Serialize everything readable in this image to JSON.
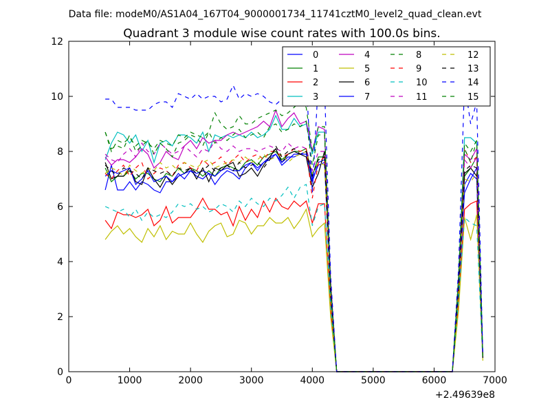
{
  "suptitle": "Data file: modeM0/AS1A04_167T04_9000001734_11741cztM0_level2_quad_clean.evt",
  "chart_data": {
    "type": "line",
    "title": "Quadrant 3 module wise count rates with 100.0s bins.",
    "xlabel": "",
    "ylabel": "",
    "x_offset_label": "+2.49639e8",
    "xlim": [
      0,
      7000
    ],
    "ylim": [
      0,
      12
    ],
    "x_ticks": [
      0,
      1000,
      2000,
      3000,
      4000,
      5000,
      6000,
      7000
    ],
    "y_ticks": [
      0,
      2,
      4,
      6,
      8,
      10,
      12
    ],
    "grid": false,
    "legend": {
      "placement": "top-right",
      "columns": 4
    },
    "x": [
      600,
      700,
      800,
      900,
      1000,
      1100,
      1200,
      1300,
      1400,
      1500,
      1600,
      1700,
      1800,
      1900,
      2000,
      2100,
      2200,
      2300,
      2400,
      2500,
      2600,
      2700,
      2800,
      2900,
      3000,
      3100,
      3200,
      3300,
      3400,
      3500,
      3600,
      3700,
      3800,
      3900,
      4000,
      4100,
      4200,
      4300,
      4400,
      4500,
      4600,
      4700,
      4800,
      4900,
      5000,
      5100,
      5200,
      5300,
      5400,
      5500,
      5600,
      5700,
      5800,
      5900,
      6000,
      6100,
      6200,
      6300,
      6400,
      6500,
      6600,
      6700,
      6800
    ],
    "series": [
      {
        "name": "0",
        "color": "#0000ff",
        "dash": "solid",
        "values": [
          6.6,
          7.5,
          6.6,
          6.6,
          6.9,
          6.6,
          6.9,
          6.8,
          6.6,
          6.5,
          6.9,
          6.9,
          7.2,
          7.0,
          7.3,
          7.1,
          7.0,
          7.2,
          6.8,
          7.1,
          7.3,
          7.2,
          7.0,
          7.4,
          7.6,
          7.3,
          7.6,
          7.8,
          7.9,
          7.5,
          7.7,
          7.9,
          7.9,
          8.0,
          6.9,
          7.6,
          7.7,
          2.8,
          0,
          0,
          0,
          0,
          0,
          0,
          0,
          0,
          0,
          0,
          0,
          0,
          0,
          0,
          0,
          0,
          0,
          0,
          0,
          0,
          3.0,
          6.5,
          7.0,
          7.4,
          0.5
        ]
      },
      {
        "name": "1",
        "color": "#008000",
        "dash": "solid",
        "values": [
          7.4,
          6.9,
          7.1,
          7.1,
          7.3,
          7.0,
          7.2,
          7.2,
          7.0,
          6.9,
          7.2,
          7.1,
          7.4,
          7.2,
          7.4,
          7.3,
          7.1,
          7.3,
          7.1,
          7.4,
          7.5,
          7.4,
          7.3,
          7.6,
          7.7,
          7.5,
          7.8,
          7.9,
          8.0,
          7.7,
          7.9,
          8.0,
          8.0,
          8.1,
          7.1,
          7.8,
          7.8,
          2.9,
          0,
          0,
          0,
          0,
          0,
          0,
          0,
          0,
          0,
          0,
          0,
          0,
          0,
          0,
          0,
          0,
          0,
          0,
          0,
          0,
          3.1,
          7.1,
          7.4,
          7.8,
          0.6
        ]
      },
      {
        "name": "2",
        "color": "#ff0000",
        "dash": "solid",
        "values": [
          5.5,
          5.2,
          5.8,
          5.7,
          5.7,
          5.6,
          5.7,
          5.9,
          5.3,
          5.5,
          6.0,
          5.4,
          5.6,
          5.6,
          5.6,
          5.9,
          6.3,
          5.9,
          5.9,
          5.7,
          5.8,
          5.3,
          6.0,
          5.5,
          5.9,
          5.6,
          6.2,
          5.8,
          6.3,
          6.0,
          5.9,
          6.2,
          6.0,
          6.2,
          5.4,
          6.1,
          6.1,
          2.3,
          0,
          0,
          0,
          0,
          0,
          0,
          0,
          0,
          0,
          0,
          0,
          0,
          0,
          0,
          0,
          0,
          0,
          0,
          0,
          0,
          2.5,
          5.9,
          6.1,
          6.2,
          0.5
        ]
      },
      {
        "name": "3",
        "color": "#00bfbf",
        "dash": "solid",
        "values": [
          7.7,
          8.3,
          8.7,
          8.6,
          8.3,
          8.6,
          8.0,
          8.4,
          7.6,
          8.3,
          8.4,
          8.2,
          8.6,
          8.6,
          8.5,
          8.3,
          8.7,
          8.0,
          8.6,
          8.5,
          8.6,
          8.5,
          8.6,
          8.5,
          8.7,
          8.5,
          8.6,
          8.8,
          9.3,
          8.8,
          8.8,
          9.2,
          8.9,
          9.0,
          7.9,
          8.7,
          8.7,
          3.2,
          0,
          0,
          0,
          0,
          0,
          0,
          0,
          0,
          0,
          0,
          0,
          0,
          0,
          0,
          0,
          0,
          0,
          0,
          0,
          0,
          3.4,
          8.5,
          8.5,
          8.3,
          0.6
        ]
      },
      {
        "name": "4",
        "color": "#bf00bf",
        "dash": "solid",
        "values": [
          7.8,
          7.5,
          7.7,
          7.7,
          7.6,
          7.8,
          8.1,
          7.9,
          7.4,
          7.6,
          8.0,
          7.8,
          7.7,
          8.2,
          8.4,
          8.1,
          8.5,
          8.3,
          8.4,
          8.4,
          8.6,
          8.7,
          8.6,
          8.7,
          8.8,
          8.9,
          9.1,
          8.9,
          9.5,
          8.9,
          9.2,
          9.4,
          9.0,
          9.1,
          8.0,
          8.9,
          8.8,
          3.3,
          0,
          0,
          0,
          0,
          0,
          0,
          0,
          0,
          0,
          0,
          0,
          0,
          0,
          0,
          0,
          0,
          0,
          0,
          0,
          0,
          3.3,
          7.9,
          7.7,
          8.1,
          0.5
        ]
      },
      {
        "name": "5",
        "color": "#bfbf00",
        "dash": "solid",
        "values": [
          4.8,
          5.1,
          5.3,
          5.0,
          5.2,
          4.9,
          4.7,
          5.2,
          4.9,
          5.3,
          4.8,
          5.1,
          5.0,
          5.0,
          5.4,
          5.0,
          4.7,
          5.1,
          5.3,
          5.4,
          4.9,
          5.0,
          5.5,
          5.4,
          5.0,
          5.3,
          5.3,
          5.6,
          5.4,
          5.4,
          5.6,
          5.2,
          5.5,
          5.9,
          4.9,
          5.2,
          5.4,
          2.0,
          0,
          0,
          0,
          0,
          0,
          0,
          0,
          0,
          0,
          0,
          0,
          0,
          0,
          0,
          0,
          0,
          0,
          0,
          0,
          0,
          2.2,
          5.6,
          4.8,
          5.7,
          0.4
        ]
      },
      {
        "name": "6",
        "color": "#000000",
        "dash": "solid",
        "values": [
          7.6,
          7.0,
          7.1,
          7.1,
          7.4,
          6.9,
          6.8,
          7.4,
          7.0,
          6.7,
          7.1,
          6.8,
          7.1,
          7.2,
          7.4,
          7.0,
          7.4,
          6.9,
          7.4,
          7.3,
          7.5,
          7.6,
          7.1,
          7.2,
          7.4,
          7.1,
          7.5,
          7.8,
          8.1,
          7.6,
          7.9,
          8.0,
          7.9,
          7.8,
          6.7,
          7.2,
          8.0,
          3.0,
          0,
          0,
          0,
          0,
          0,
          0,
          0,
          0,
          0,
          0,
          0,
          0,
          0,
          0,
          0,
          0,
          0,
          0,
          0,
          0,
          3.0,
          7.2,
          7.4,
          7.1,
          0.5
        ]
      },
      {
        "name": "7",
        "color": "#0000ff",
        "dash": "solid",
        "values": [
          7.1,
          7.3,
          7.2,
          7.3,
          7.4,
          6.8,
          7.0,
          7.3,
          6.9,
          7.0,
          7.1,
          6.9,
          7.1,
          7.2,
          7.3,
          7.2,
          7.3,
          7.2,
          7.1,
          7.3,
          7.4,
          7.3,
          7.3,
          7.5,
          7.6,
          7.4,
          7.6,
          7.7,
          7.9,
          7.6,
          7.8,
          7.8,
          7.9,
          7.9,
          7.0,
          7.5,
          7.6,
          2.8,
          0,
          0,
          0,
          0,
          0,
          0,
          0,
          0,
          0,
          0,
          0,
          0,
          0,
          0,
          0,
          0,
          0,
          0,
          0,
          0,
          2.9,
          6.8,
          7.2,
          7.0,
          0.5
        ]
      },
      {
        "name": "8",
        "color": "#008000",
        "dash": "dashed",
        "values": [
          8.7,
          8.0,
          8.4,
          8.3,
          8.5,
          8.2,
          8.4,
          8.3,
          8.1,
          8.4,
          8.3,
          8.2,
          8.6,
          8.5,
          8.7,
          8.6,
          8.5,
          8.7,
          9.4,
          9.0,
          8.8,
          8.9,
          9.3,
          9.0,
          9.0,
          9.2,
          9.3,
          9.4,
          9.5,
          9.3,
          9.4,
          9.6,
          9.8,
          9.6,
          8.0,
          8.9,
          8.9,
          3.2,
          0,
          0,
          0,
          0,
          0,
          0,
          0,
          0,
          0,
          0,
          0,
          0,
          0,
          0,
          0,
          0,
          0,
          0,
          0,
          0,
          3.4,
          8.3,
          8.0,
          8.4,
          0.6
        ]
      },
      {
        "name": "9",
        "color": "#ff0000",
        "dash": "dashed",
        "values": [
          7.2,
          7.0,
          7.3,
          7.5,
          7.1,
          7.4,
          7.6,
          7.0,
          7.2,
          7.4,
          7.3,
          7.1,
          7.5,
          7.6,
          7.4,
          7.3,
          7.7,
          7.5,
          7.6,
          7.8,
          7.5,
          7.7,
          7.9,
          7.6,
          7.8,
          7.9,
          7.7,
          8.0,
          8.0,
          7.8,
          7.9,
          8.1,
          8.0,
          8.1,
          6.3,
          7.6,
          7.8,
          2.9,
          0,
          0,
          0,
          0,
          0,
          0,
          0,
          0,
          0,
          0,
          0,
          0,
          0,
          0,
          0,
          0,
          0,
          0,
          0,
          0,
          3.0,
          8.1,
          7.6,
          7.8,
          0.5
        ]
      },
      {
        "name": "10",
        "color": "#00bfbf",
        "dash": "dashed",
        "values": [
          6.0,
          5.9,
          5.8,
          5.9,
          5.6,
          5.9,
          5.5,
          5.8,
          5.6,
          5.7,
          5.6,
          5.8,
          6.1,
          6.0,
          6.1,
          5.9,
          6.0,
          5.8,
          5.9,
          6.1,
          6.0,
          5.8,
          6.2,
          6.0,
          6.3,
          6.1,
          6.0,
          6.3,
          6.2,
          6.4,
          6.7,
          6.3,
          6.7,
          6.8,
          5.3,
          6.0,
          6.1,
          2.4,
          0,
          0,
          0,
          0,
          0,
          0,
          0,
          0,
          0,
          0,
          0,
          0,
          0,
          0,
          0,
          0,
          0,
          0,
          0,
          0,
          2.6,
          5.6,
          5.4,
          5.3,
          0.4
        ]
      },
      {
        "name": "11",
        "color": "#bf00bf",
        "dash": "dashed",
        "values": [
          7.9,
          7.7,
          7.6,
          7.9,
          8.1,
          7.8,
          8.3,
          8.0,
          7.9,
          8.3,
          8.1,
          7.9,
          8.0,
          8.2,
          8.0,
          7.8,
          8.1,
          8.0,
          8.4,
          8.1,
          8.0,
          8.2,
          8.0,
          8.1,
          8.1,
          8.0,
          8.1,
          8.2,
          8.1,
          8.0,
          8.3,
          8.1,
          8.2,
          8.1,
          7.3,
          8.0,
          8.0,
          3.1,
          0,
          0,
          0,
          0,
          0,
          0,
          0,
          0,
          0,
          0,
          0,
          0,
          0,
          0,
          0,
          0,
          0,
          0,
          0,
          0,
          3.1,
          7.7,
          7.4,
          7.8,
          0.5
        ]
      },
      {
        "name": "12",
        "color": "#bfbf00",
        "dash": "dashed",
        "values": [
          7.2,
          7.4,
          7.3,
          7.1,
          7.5,
          7.3,
          7.2,
          7.4,
          7.3,
          7.6,
          7.4,
          7.5,
          7.3,
          7.6,
          7.5,
          7.4,
          7.6,
          7.7,
          7.4,
          7.5,
          7.6,
          7.7,
          7.6,
          7.8,
          7.6,
          7.7,
          7.9,
          7.7,
          7.8,
          7.9,
          7.6,
          7.8,
          7.9,
          8.0,
          7.2,
          7.6,
          7.5,
          2.8,
          0,
          0,
          0,
          0,
          0,
          0,
          0,
          0,
          0,
          0,
          0,
          0,
          0,
          0,
          0,
          0,
          0,
          0,
          0,
          0,
          2.9,
          7.0,
          6.9,
          7.2,
          0.5
        ]
      },
      {
        "name": "13",
        "color": "#000000",
        "dash": "dashed",
        "values": [
          7.5,
          7.3,
          7.1,
          7.4,
          7.3,
          7.2,
          7.0,
          7.4,
          7.3,
          7.2,
          7.3,
          7.1,
          7.4,
          7.3,
          7.4,
          7.2,
          7.3,
          7.5,
          7.3,
          7.4,
          7.5,
          7.3,
          7.6,
          7.4,
          7.5,
          7.6,
          7.4,
          7.7,
          8.2,
          7.8,
          8.0,
          8.1,
          7.9,
          8.0,
          7.1,
          7.7,
          7.8,
          2.9,
          0,
          0,
          0,
          0,
          0,
          0,
          0,
          0,
          0,
          0,
          0,
          0,
          0,
          0,
          0,
          0,
          0,
          0,
          0,
          0,
          3.0,
          7.3,
          7.5,
          7.4,
          0.5
        ]
      },
      {
        "name": "14",
        "color": "#0000ff",
        "dash": "dashed",
        "values": [
          9.9,
          9.9,
          9.6,
          9.6,
          9.6,
          9.5,
          9.5,
          9.5,
          9.7,
          9.8,
          9.8,
          9.6,
          10.1,
          10.0,
          9.9,
          10.1,
          9.9,
          10.0,
          10.0,
          9.8,
          9.9,
          10.4,
          9.9,
          10.1,
          10.0,
          10.1,
          10.0,
          9.8,
          9.7,
          9.9,
          10.1,
          10.0,
          10.2,
          10.6,
          6.5,
          10.6,
          10.4,
          3.5,
          0,
          0,
          0,
          0,
          0,
          0,
          0,
          0,
          0,
          0,
          0,
          0,
          0,
          0,
          0,
          0,
          0,
          0,
          0,
          0,
          3.7,
          10.5,
          9.0,
          9.8,
          0.6
        ]
      },
      {
        "name": "15",
        "color": "#008000",
        "dash": "dashed",
        "values": [
          8.7,
          8.1,
          8.2,
          8.1,
          8.6,
          8.0,
          8.2,
          8.4,
          7.9,
          8.3,
          8.1,
          7.8,
          8.3,
          8.4,
          8.6,
          8.5,
          8.2,
          8.7,
          8.3,
          8.5,
          8.4,
          8.6,
          8.8,
          8.5,
          8.6,
          8.7,
          8.5,
          8.9,
          9.0,
          8.7,
          8.8,
          9.0,
          8.9,
          9.1,
          7.5,
          8.6,
          8.6,
          3.1,
          0,
          0,
          0,
          0,
          0,
          0,
          0,
          0,
          0,
          0,
          0,
          0,
          0,
          0,
          0,
          0,
          0,
          0,
          0,
          0,
          3.3,
          8.1,
          7.6,
          8.4,
          0.5
        ]
      }
    ]
  }
}
